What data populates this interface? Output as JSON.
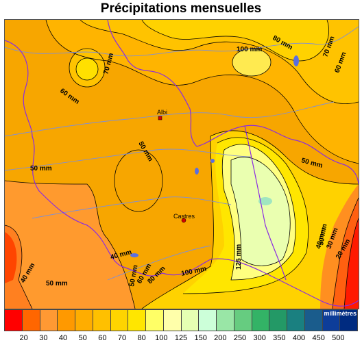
{
  "title": "Précipitations mensuelles",
  "units_label": "millimètres",
  "cities": [
    {
      "name": "Albi"
    },
    {
      "name": "Castres"
    }
  ],
  "isoline_labels": [
    "100 mm",
    "80 mm",
    "70 mm",
    "60 mm",
    "70 mm",
    "60 mm",
    "50 mm",
    "50 mm",
    "50 mm",
    "40 mm",
    "40 mm",
    "50 mm",
    "50 mm",
    "60 mm",
    "80 mm",
    "100 mm",
    "125 mm",
    "50 mm",
    "40 mm",
    "30 mm",
    "20 mm"
  ],
  "legend": {
    "colors": [
      "#ff0000",
      "#ff6600",
      "#ff9933",
      "#ff9900",
      "#ffad00",
      "#ffc000",
      "#ffd400",
      "#ffe600",
      "#ffff66",
      "#ffffaa",
      "#e6ffb3",
      "#ccffd9",
      "#99e6a6",
      "#66cc80",
      "#33b366",
      "#239966",
      "#1a8080",
      "#1a5c8c",
      "#0d3d99",
      "#002b80"
    ],
    "ticks": [
      "20",
      "30",
      "40",
      "50",
      "60",
      "70",
      "80",
      "100",
      "125",
      "150",
      "200",
      "250",
      "300",
      "350",
      "400",
      "450",
      "500"
    ]
  }
}
